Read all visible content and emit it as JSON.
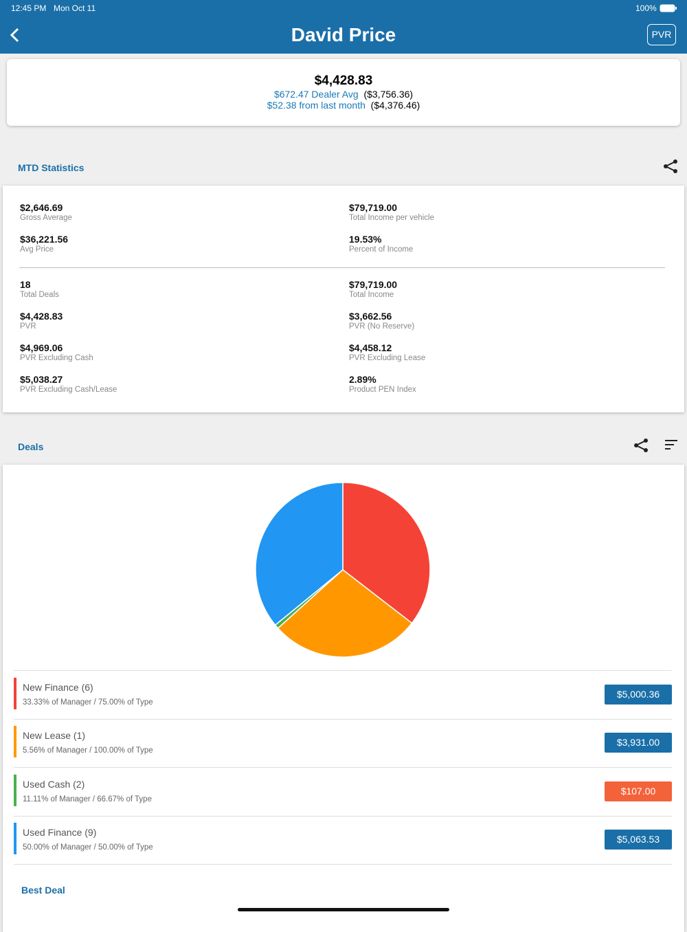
{
  "status": {
    "time": "12:45 PM",
    "date": "Mon Oct 11",
    "battery": "100%"
  },
  "header": {
    "title": "David Price",
    "button": "PVR"
  },
  "summary": {
    "pvr": "$4,428.83",
    "dealer_avg": "$672.47 Dealer Avg",
    "dealer_avg_value": "($3,756.36)",
    "last_month": "$52.38 from last month",
    "last_month_value": "($4,376.46)"
  },
  "mtd": {
    "title": "MTD Statistics",
    "top": [
      {
        "value": "$2,646.69",
        "label": "Gross Average"
      },
      {
        "value": "$79,719.00",
        "label": "Total Income per vehicle"
      },
      {
        "value": "$36,221.56",
        "label": "Avg Price"
      },
      {
        "value": "19.53%",
        "label": "Percent of Income"
      }
    ],
    "bottom": [
      {
        "value": "18",
        "label": "Total Deals"
      },
      {
        "value": "$79,719.00",
        "label": "Total Income"
      },
      {
        "value": "$4,428.83",
        "label": "PVR"
      },
      {
        "value": "$3,662.56",
        "label": "PVR (No Reserve)"
      },
      {
        "value": "$4,969.06",
        "label": "PVR Excluding Cash"
      },
      {
        "value": "$4,458.12",
        "label": "PVR Excluding Lease"
      },
      {
        "value": "$5,038.27",
        "label": "PVR Excluding Cash/Lease"
      },
      {
        "value": "2.89%",
        "label": "Product PEN Index"
      }
    ]
  },
  "deals": {
    "title": "Deals",
    "type": "pie",
    "items": [
      {
        "name": "New Finance (6)",
        "detail": "33.33% of Manager / 75.00% of Type",
        "color": "#f44336",
        "badge_color": "#1a6fa8",
        "amount": {
          "value": 5000.36,
          "label": "$5,000.36"
        }
      },
      {
        "name": "New Lease (1)",
        "detail": "5.56% of Manager / 100.00% of Type",
        "color": "#ff9800",
        "badge_color": "#1a6fa8",
        "amount": {
          "value": 3931.0,
          "label": "$3,931.00"
        }
      },
      {
        "name": "Used Cash (2)",
        "detail": "11.11% of Manager / 66.67% of Type",
        "color": "#4caf50",
        "badge_color": "#f4623a",
        "amount": {
          "value": 107.0,
          "label": "$107.00"
        }
      },
      {
        "name": "Used Finance (9)",
        "detail": "50.00% of Manager / 50.00% of Type",
        "color": "#2196f3",
        "badge_color": "#1a6fa8",
        "amount": {
          "value": 5063.53,
          "label": "$5,063.53"
        }
      }
    ]
  },
  "best_deal": {
    "title": "Best Deal"
  }
}
